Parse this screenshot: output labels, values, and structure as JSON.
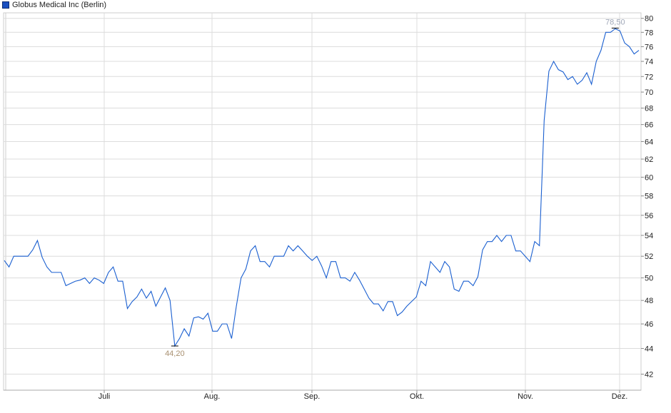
{
  "chart_data": {
    "type": "line",
    "legend": {
      "label": "Globus Medical Inc (Berlin)",
      "placement": "top-left"
    },
    "series": [
      {
        "name": "Globus Medical Inc (Berlin)",
        "color": "#1a5fd0",
        "values": [
          51.6,
          51,
          52,
          52,
          52,
          52,
          52.6,
          53.5,
          51.9,
          51,
          50.5,
          50.5,
          50.5,
          49.3,
          49.5,
          49.7,
          49.8,
          50,
          49.5,
          50,
          49.8,
          49.5,
          50.5,
          51,
          49.7,
          49.7,
          47.3,
          47.9,
          48.3,
          49,
          48.2,
          48.8,
          47.5,
          48.3,
          49.1,
          48,
          44.2,
          44.8,
          45.6,
          45,
          46.5,
          46.6,
          46.4,
          46.9,
          45.4,
          45.4,
          46,
          46,
          44.8,
          47.5,
          50,
          50.8,
          52.5,
          53,
          51.5,
          51.5,
          51,
          52,
          52,
          52,
          53,
          52.5,
          53,
          52.5,
          52,
          51.6,
          52,
          51.1,
          50,
          51.5,
          51.5,
          50,
          50,
          49.7,
          50.5,
          49.8,
          49,
          48.2,
          47.7,
          47.7,
          47.1,
          47.9,
          47.9,
          46.7,
          47,
          47.5,
          47.9,
          48.3,
          49.7,
          49.3,
          51.5,
          51,
          50.5,
          51.5,
          51,
          49,
          48.8,
          49.7,
          49.7,
          49.3,
          50.1,
          52.6,
          53.4,
          53.4,
          54,
          53.4,
          54,
          54,
          52.5,
          52.5,
          52,
          51.5,
          53.4,
          53,
          66.5,
          72.7,
          74,
          72.9,
          72.6,
          71.6,
          72,
          71,
          71.5,
          72.5,
          71,
          74,
          75.5,
          78,
          78,
          78.5,
          78.2,
          76.5,
          76,
          75,
          75.5
        ]
      }
    ],
    "annotations": {
      "min_label": "44,20",
      "max_label": "78,50",
      "color": "#a89070"
    },
    "x_tick_labels": [
      "Juli",
      "Aug.",
      "Sep.",
      "Okt.",
      "Nov.",
      "Dez."
    ],
    "y_ticks": [
      "42",
      "44",
      "46",
      "48",
      "50",
      "52",
      "54",
      "56",
      "58",
      "60",
      "62",
      "64",
      "66",
      "68",
      "70",
      "72",
      "74",
      "76",
      "78",
      "80"
    ],
    "y_scale": "log",
    "ylim": [
      40.8,
      80.8
    ],
    "y_axis_position": "right",
    "grid": true
  }
}
